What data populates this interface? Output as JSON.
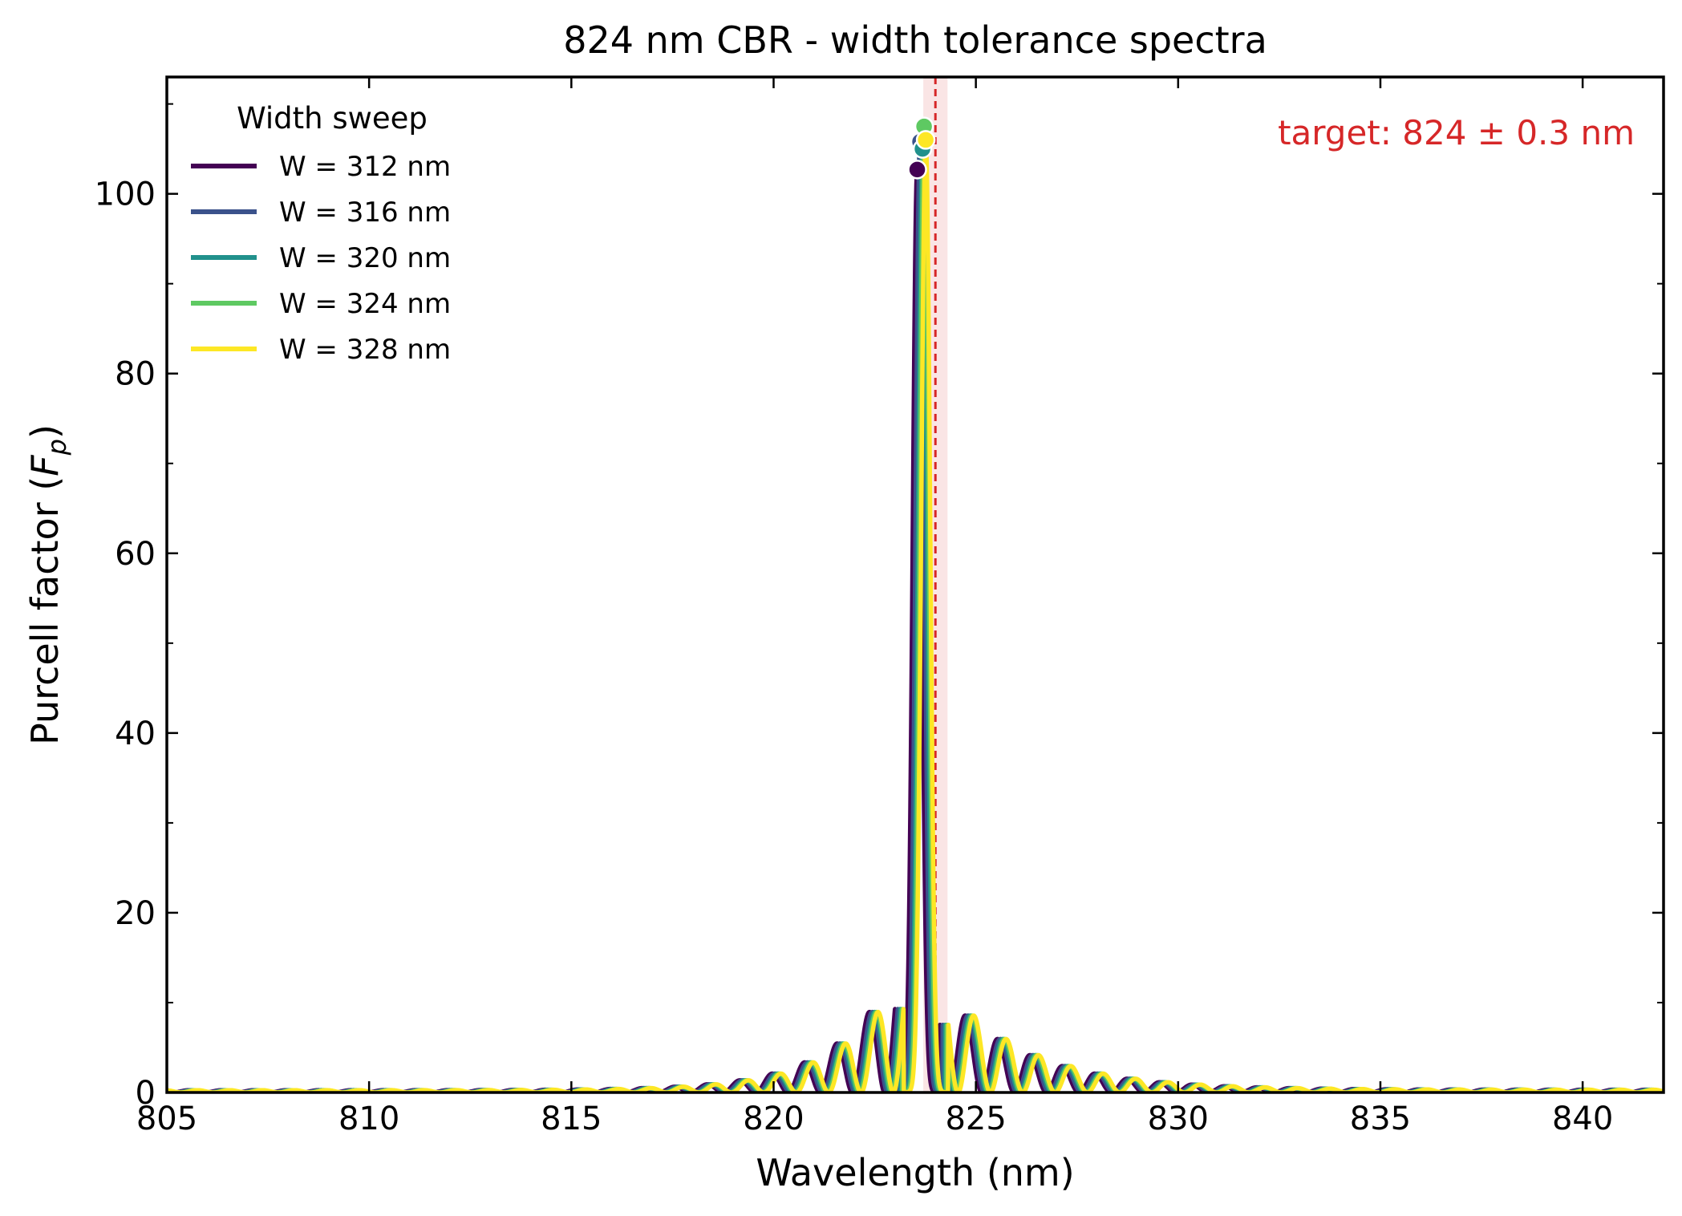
{
  "chart_data": {
    "type": "line",
    "title": "824 nm CBR - width tolerance spectra",
    "xlabel": "Wavelength (nm)",
    "ylabel_main": "Purcell factor (",
    "ylabel_symbol": "F",
    "ylabel_sub": "p",
    "ylabel_close": ")",
    "xlim": [
      805,
      842
    ],
    "ylim": [
      0,
      113
    ],
    "xticks": [
      805,
      810,
      815,
      820,
      825,
      830,
      835,
      840
    ],
    "xtick_labels": [
      "805",
      "810",
      "815",
      "820",
      "825",
      "830",
      "835",
      "840"
    ],
    "yticks": [
      0,
      20,
      40,
      60,
      80,
      100
    ],
    "ytick_labels": [
      "0",
      "20",
      "40",
      "60",
      "80",
      "100"
    ],
    "grid": false,
    "legend": {
      "title": "Width sweep",
      "placement": "top-left"
    },
    "target": {
      "label": "target: 824 ± 0.3 nm",
      "center": 824.0,
      "tolerance": 0.3,
      "color": "#d62728"
    },
    "series": [
      {
        "name": "W = 312 nm",
        "color": "#440154",
        "peak_wavelength": 823.55,
        "peak_fp": 102.7
      },
      {
        "name": "W = 316 nm",
        "color": "#3b528b",
        "peak_wavelength": 823.62,
        "peak_fp": 105.8
      },
      {
        "name": "W = 320 nm",
        "color": "#21918c",
        "peak_wavelength": 823.68,
        "peak_fp": 105.0
      },
      {
        "name": "W = 324 nm",
        "color": "#5ec962",
        "peak_wavelength": 823.72,
        "peak_fp": 107.5
      },
      {
        "name": "W = 328 nm",
        "color": "#fde725",
        "peak_wavelength": 823.76,
        "peak_fp": 106.0
      }
    ]
  }
}
